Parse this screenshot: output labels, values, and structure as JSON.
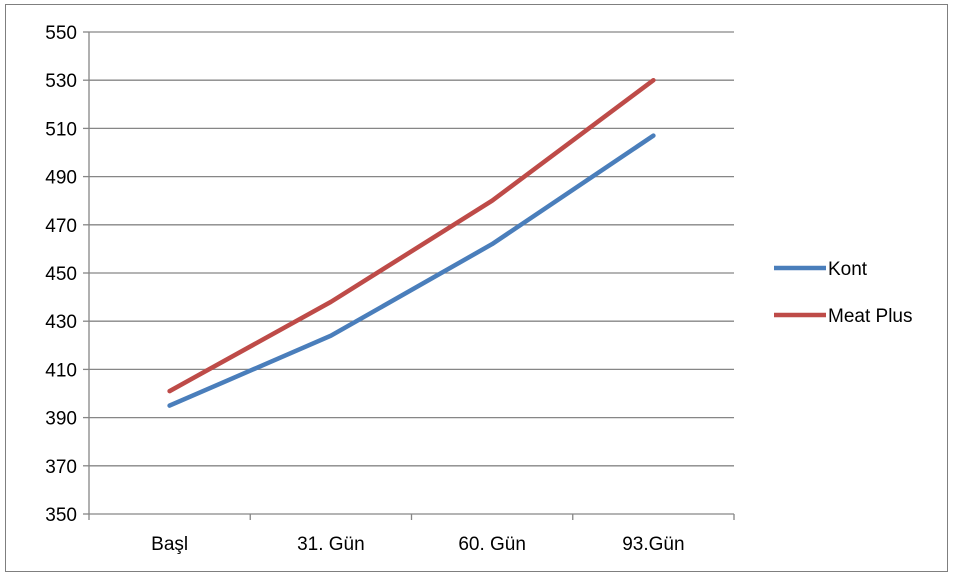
{
  "chart_data": {
    "type": "line",
    "title": "",
    "xlabel": "",
    "ylabel": "",
    "categories": [
      "Başl",
      "31. Gün",
      "60. Gün",
      "93.Gün"
    ],
    "ylim": [
      350,
      550
    ],
    "yticks": [
      350,
      370,
      390,
      410,
      430,
      450,
      470,
      490,
      510,
      530,
      550
    ],
    "grid": true,
    "legend_position": "right",
    "series": [
      {
        "name": "Kont",
        "color": "#4a7ebb",
        "values": [
          395,
          424,
          462,
          507
        ]
      },
      {
        "name": "Meat Plus",
        "color": "#be4b48",
        "values": [
          401,
          438,
          480,
          530
        ]
      }
    ]
  }
}
